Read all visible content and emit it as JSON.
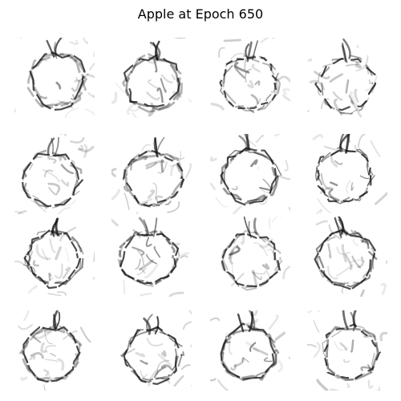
{
  "title": "Apple at Epoch 650",
  "grid": {
    "rows": 4,
    "cols": 4,
    "samples": [
      {
        "id": "sample-1"
      },
      {
        "id": "sample-2"
      },
      {
        "id": "sample-3"
      },
      {
        "id": "sample-4"
      },
      {
        "id": "sample-5"
      },
      {
        "id": "sample-6"
      },
      {
        "id": "sample-7"
      },
      {
        "id": "sample-8"
      },
      {
        "id": "sample-9"
      },
      {
        "id": "sample-10"
      },
      {
        "id": "sample-11"
      },
      {
        "id": "sample-12"
      },
      {
        "id": "sample-13"
      },
      {
        "id": "sample-14"
      },
      {
        "id": "sample-15"
      },
      {
        "id": "sample-16"
      }
    ]
  },
  "colors": {
    "ink": "#111111",
    "background": "#ffffff"
  }
}
